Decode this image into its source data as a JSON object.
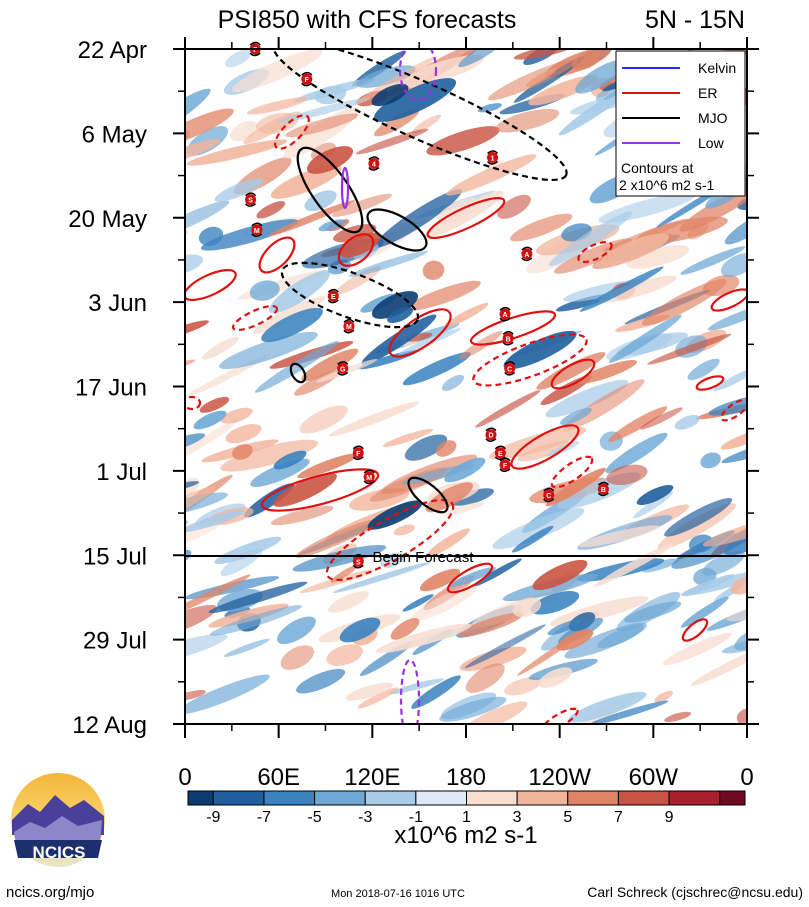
{
  "chart_data": {
    "type": "heatmap",
    "title": "PSI850 with CFS forecasts",
    "subtitle_right": "5N - 15N",
    "x_tick_labels": [
      "0",
      "60E",
      "120E",
      "180",
      "120W",
      "60W",
      "0"
    ],
    "y_tick_labels": [
      "22 Apr",
      "6 May",
      "20 May",
      "3 Jun",
      "17 Jun",
      "1 Jul",
      "15 Jul",
      "29 Jul",
      "12 Aug"
    ],
    "forecast_line_label": "Begin Forecast",
    "legend": {
      "entries": [
        {
          "label": "Kelvin",
          "color": "#2b2bff",
          "style": "solid"
        },
        {
          "label": "ER",
          "color": "#e01010",
          "style": "solid"
        },
        {
          "label": "MJO",
          "color": "#000000",
          "style": "solid"
        },
        {
          "label": "Low",
          "color": "#9b30e0",
          "style": "solid"
        }
      ],
      "note_line1": "Contours at",
      "note_line2": "2 x10^6 m2 s-1",
      "position": "top-right"
    },
    "colorbar": {
      "tick_labels": [
        "-9",
        "-7",
        "-5",
        "-3",
        "-1",
        "1",
        "3",
        "5",
        "7",
        "9"
      ],
      "colors": [
        "#0b3d72",
        "#1f5f9e",
        "#3a83c0",
        "#6ea8d6",
        "#a7cbe8",
        "#dde9f4",
        "#f8ddd0",
        "#f2b59c",
        "#e18466",
        "#c95443",
        "#a81f2e",
        "#6e0b22"
      ],
      "unit_label": "x10^6 m2 s-1"
    },
    "storm_markers": [
      {
        "letter": "F",
        "lon": 45,
        "date": "22 Apr"
      },
      {
        "letter": "F",
        "lon": 78,
        "date": "27 Apr"
      },
      {
        "letter": "S",
        "lon": 42,
        "date": "17 May"
      },
      {
        "letter": "M",
        "lon": 46,
        "date": "22 May"
      },
      {
        "letter": "E",
        "lon": 95,
        "date": "2 Jun"
      },
      {
        "letter": "M",
        "lon": 105,
        "date": "7 Jun"
      },
      {
        "letter": "G",
        "lon": 101,
        "date": "14 Jun"
      },
      {
        "letter": "4",
        "lon": 121,
        "date": "11 May"
      },
      {
        "letter": "1",
        "lon": 197,
        "date": "10 May"
      },
      {
        "letter": "A",
        "lon": 219,
        "date": "26 May"
      },
      {
        "letter": "A",
        "lon": 205,
        "date": "5 Jun"
      },
      {
        "letter": "B",
        "lon": 207,
        "date": "9 Jun"
      },
      {
        "letter": "C",
        "lon": 208,
        "date": "14 Jun"
      },
      {
        "letter": "D",
        "lon": 196,
        "date": "25 Jun"
      },
      {
        "letter": "E",
        "lon": 202,
        "date": "28 Jun"
      },
      {
        "letter": "F",
        "lon": 205,
        "date": "30 Jun"
      },
      {
        "letter": "F",
        "lon": 111,
        "date": "28 Jun"
      },
      {
        "letter": "M",
        "lon": 118,
        "date": "2 Jul"
      },
      {
        "letter": "C",
        "lon": 233,
        "date": "5 Jul"
      },
      {
        "letter": "B",
        "lon": 268,
        "date": "4 Jul"
      },
      {
        "letter": "S",
        "lon": 111,
        "date": "16 Jul"
      }
    ]
  },
  "footer": {
    "logo_text": "NCICS",
    "url": "ncics.org/mjo",
    "timestamp": "Mon 2018-07-16 1016 UTC",
    "author": "Carl Schreck (cjschrec@ncsu.edu)"
  }
}
